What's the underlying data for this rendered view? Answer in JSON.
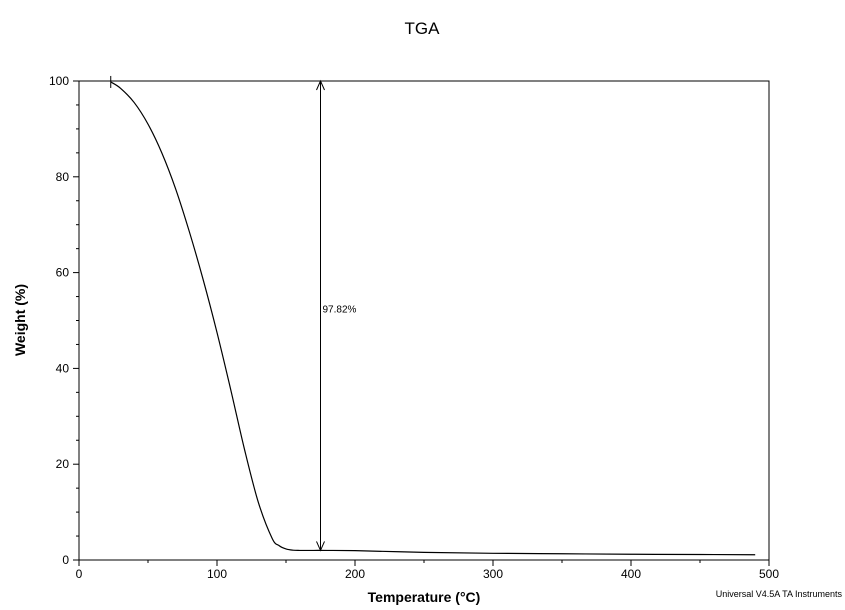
{
  "chart_data": {
    "type": "line",
    "title": "TGA",
    "xlabel": "Temperature (°C)",
    "ylabel": "Weight (%)",
    "xlim": [
      0,
      500
    ],
    "ylim": [
      0,
      100
    ],
    "x_ticks": [
      0,
      100,
      200,
      300,
      400,
      500
    ],
    "y_ticks": [
      0,
      20,
      40,
      60,
      80,
      100
    ],
    "x_tick_labels": [
      "0",
      "100",
      "200",
      "300",
      "400",
      "500"
    ],
    "y_tick_labels": [
      "0",
      "20",
      "40",
      "60",
      "80",
      "100"
    ],
    "grid": false,
    "series": [
      {
        "color": "#000000",
        "x": [
          23,
          30,
          40,
          50,
          60,
          70,
          80,
          90,
          100,
          110,
          120,
          130,
          140,
          145,
          150,
          155,
          160,
          170,
          180,
          200,
          250,
          300,
          350,
          400,
          450,
          490
        ],
        "y": [
          99.8,
          98.5,
          95.5,
          91.0,
          85.0,
          77.5,
          68.5,
          58.5,
          47.5,
          35.5,
          23.0,
          12.0,
          4.5,
          3.0,
          2.3,
          2.05,
          2.0,
          2.0,
          2.0,
          1.95,
          1.6,
          1.4,
          1.3,
          1.2,
          1.15,
          1.1
        ]
      }
    ],
    "annotations": [
      {
        "text": "97.82%",
        "x": 175,
        "y_top": 100,
        "y_bottom": 2,
        "label_y": 52.5
      }
    ],
    "start_marker_x": 23
  },
  "footer": "Universal V4.5A TA Instruments"
}
